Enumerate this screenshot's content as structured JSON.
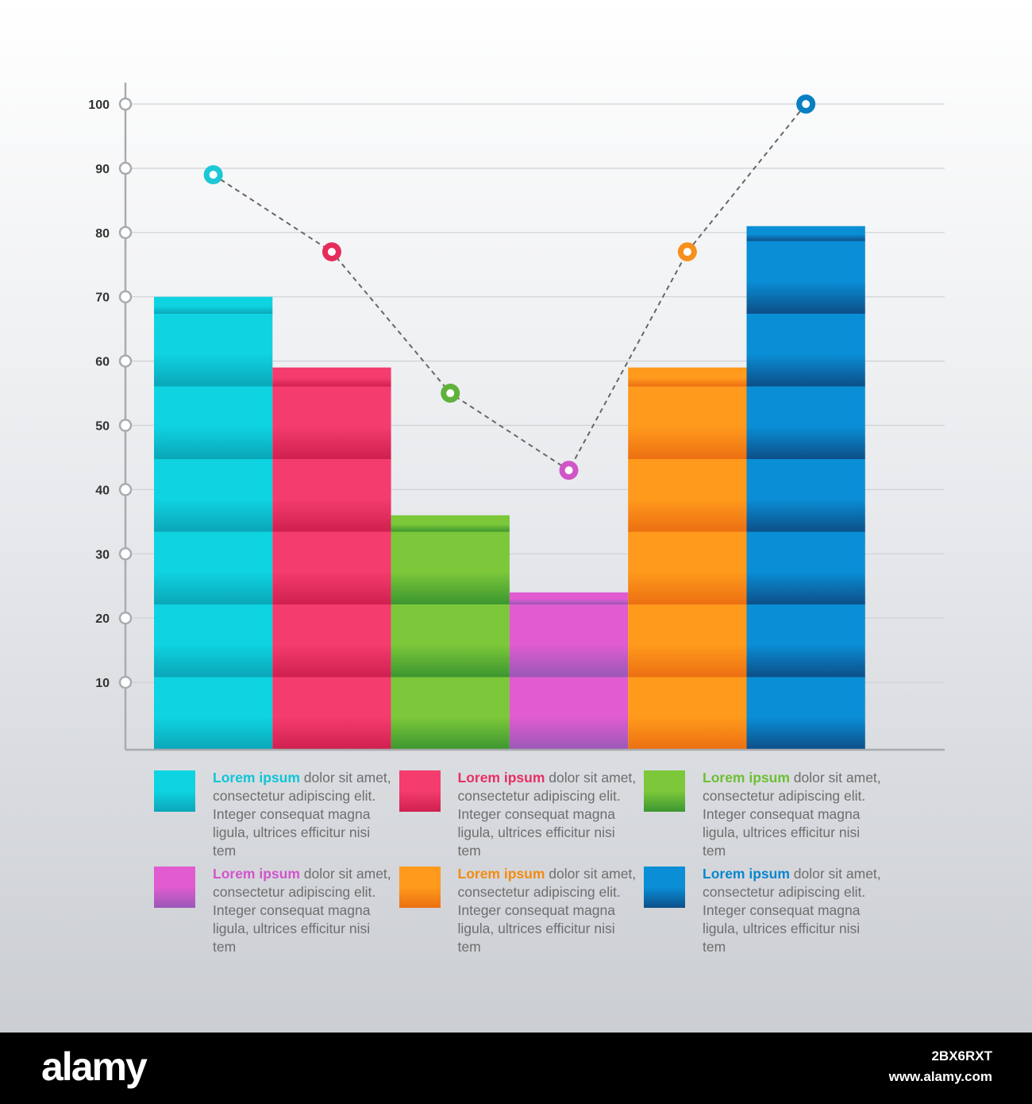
{
  "chart_data": {
    "type": "bar",
    "title": "",
    "xlabel": "",
    "ylabel": "",
    "ylim": [
      0,
      105
    ],
    "yticks": [
      10,
      20,
      30,
      40,
      50,
      60,
      70,
      80,
      90,
      100
    ],
    "grid": true,
    "bars": [
      {
        "value": 70,
        "color": "#0fd3e0",
        "dark": "#0aa6b8"
      },
      {
        "value": 59,
        "color": "#f43c6e",
        "dark": "#cf2050"
      },
      {
        "value": 36,
        "color": "#7cc83a",
        "dark": "#3c9630"
      },
      {
        "value": 24,
        "color": "#e05cd0",
        "dark": "#9a58b8"
      },
      {
        "value": 59,
        "color": "#ff9a1c",
        "dark": "#ec6f12"
      },
      {
        "value": 81,
        "color": "#0a8ed6",
        "dark": "#0c4f88"
      }
    ],
    "line": {
      "values": [
        89,
        77,
        55,
        43,
        77,
        100
      ],
      "marker_colors": [
        "#1dc7d6",
        "#e62c5c",
        "#5fb23a",
        "#d056c8",
        "#f6901c",
        "#0a7fc2"
      ],
      "style": "dashed",
      "color": "#666666"
    }
  },
  "legend": [
    {
      "head": "Lorem ipsum",
      "rest": " dolor sit amet, consectetur adipiscing elit. Integer consequat magna ligula, ultrices efficitur nisi tem",
      "color": "#0fc5d8"
    },
    {
      "head": "Lorem ipsum",
      "rest": " dolor sit amet, consectetur adipiscing elit. Integer consequat magna ligula, ultrices efficitur nisi tem",
      "color": "#e62f63"
    },
    {
      "head": "Lorem ipsum",
      "rest": " dolor sit amet, consectetur adipiscing elit. Integer consequat magna ligula, ultrices efficitur nisi tem",
      "color": "#6dbf35"
    },
    {
      "head": "Lorem ipsum",
      "rest": " dolor sit amet, consectetur adipiscing elit. Integer consequat magna ligula, ultrices efficitur nisi tem",
      "color": "#d354cc"
    },
    {
      "head": "Lorem ipsum",
      "rest": " dolor sit amet, consectetur adipiscing elit. Integer consequat magna ligula, ultrices efficitur nisi tem",
      "color": "#f48b12"
    },
    {
      "head": "Lorem ipsum",
      "rest": " dolor sit amet, consectetur adipiscing elit. Integer consequat magna ligula, ultrices efficitur nisi tem",
      "color": "#0a86cf"
    }
  ],
  "footer": {
    "brand": "alamy",
    "image_id": "2BX6RXT",
    "url": "www.alamy.com"
  }
}
